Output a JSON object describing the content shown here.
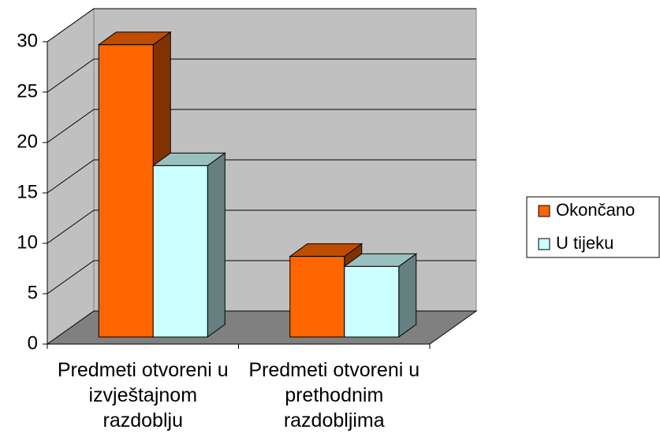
{
  "chart_data": {
    "type": "bar3d",
    "categories": [
      "Predmeti otvoreni u izvještajnom razdoblju",
      "Predmeti otvoreni u prethodnim razdobljima"
    ],
    "series": [
      {
        "name": "Okončano",
        "color": "#ff6600",
        "values": [
          29,
          8
        ]
      },
      {
        "name": "U tijeku",
        "color": "#ccffff",
        "values": [
          17,
          7
        ]
      }
    ],
    "ylim": [
      0,
      30
    ],
    "yticks": [
      0,
      5,
      10,
      15,
      20,
      25,
      30
    ],
    "grid": true,
    "legend": "right"
  }
}
